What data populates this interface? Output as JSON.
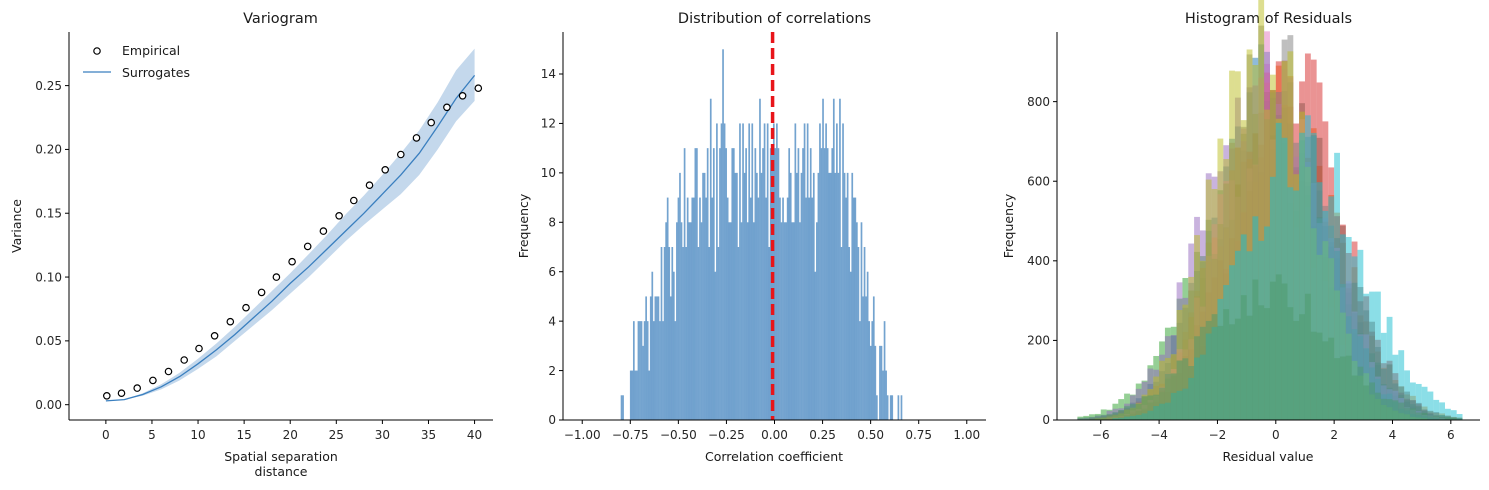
{
  "chart_data": [
    {
      "type": "scatter",
      "title": "Variogram",
      "xlabel": "Spatial separation\ndistance",
      "ylabel": "Variance",
      "xlim": [
        -4,
        42
      ],
      "ylim": [
        -0.012,
        0.292
      ],
      "xticks": [
        0,
        5,
        10,
        15,
        20,
        25,
        30,
        35,
        40
      ],
      "yticks": [
        0.0,
        0.05,
        0.1,
        0.15,
        0.2,
        0.25
      ],
      "ytick_labels": [
        "0.00",
        "0.05",
        "0.10",
        "0.15",
        "0.20",
        "0.25"
      ],
      "legend": {
        "position": "top-left",
        "entries": [
          "Empirical",
          "Surrogates"
        ]
      },
      "series": [
        {
          "name": "Empirical",
          "kind": "scatter",
          "x": [
            0.1,
            1.7,
            3.4,
            5.1,
            6.8,
            8.5,
            10.1,
            11.8,
            13.5,
            15.2,
            16.9,
            18.5,
            20.2,
            21.9,
            23.6,
            25.3,
            26.9,
            28.6,
            30.3,
            32.0,
            33.7,
            35.3,
            37.0,
            38.7,
            40.4
          ],
          "y": [
            0.007,
            0.009,
            0.013,
            0.019,
            0.026,
            0.035,
            0.044,
            0.054,
            0.065,
            0.076,
            0.088,
            0.1,
            0.112,
            0.124,
            0.136,
            0.148,
            0.16,
            0.172,
            0.184,
            0.196,
            0.209,
            0.221,
            0.233,
            0.242,
            0.248
          ],
          "color": "#000000"
        },
        {
          "name": "Surrogates",
          "kind": "line",
          "x": [
            0,
            2,
            4,
            6,
            8,
            10,
            12,
            14,
            16,
            18,
            20,
            22,
            24,
            26,
            28,
            30,
            32,
            34,
            36,
            38,
            40
          ],
          "y": [
            0.003,
            0.004,
            0.008,
            0.014,
            0.022,
            0.032,
            0.043,
            0.055,
            0.068,
            0.081,
            0.095,
            0.108,
            0.122,
            0.136,
            0.15,
            0.165,
            0.18,
            0.197,
            0.218,
            0.24,
            0.258
          ],
          "band_lower": [
            0.003,
            0.004,
            0.007,
            0.012,
            0.019,
            0.028,
            0.038,
            0.05,
            0.062,
            0.074,
            0.087,
            0.1,
            0.114,
            0.128,
            0.141,
            0.153,
            0.165,
            0.18,
            0.2,
            0.222,
            0.238
          ],
          "band_upper": [
            0.003,
            0.004,
            0.009,
            0.016,
            0.025,
            0.036,
            0.048,
            0.061,
            0.075,
            0.089,
            0.103,
            0.118,
            0.133,
            0.149,
            0.164,
            0.18,
            0.197,
            0.215,
            0.237,
            0.262,
            0.279
          ],
          "color": "#3a7fbf",
          "band_color": "#c4d8ec"
        }
      ]
    },
    {
      "type": "bar",
      "title": "Distribution of correlations",
      "xlabel": "Correlation coefficient",
      "ylabel": "Frequency",
      "xlim": [
        -1.1,
        1.1
      ],
      "ylim": [
        0,
        15.7
      ],
      "xticks": [
        -1.0,
        -0.75,
        -0.5,
        -0.25,
        0.0,
        0.25,
        0.5,
        0.75,
        1.0
      ],
      "xtick_labels": [
        "−1.00",
        "−0.75",
        "−0.50",
        "−0.25",
        "0.00",
        "0.25",
        "0.50",
        "0.75",
        "1.00"
      ],
      "yticks": [
        0,
        2,
        4,
        6,
        8,
        10,
        12,
        14
      ],
      "bin_start": -0.8,
      "bin_width": 0.008,
      "counts": [
        1,
        1,
        0,
        0,
        0,
        0,
        2,
        2,
        4,
        2,
        2,
        4,
        4,
        4,
        3,
        4,
        5,
        4,
        2,
        5,
        6,
        4,
        5,
        5,
        5,
        4,
        7,
        4,
        7,
        8,
        9,
        7,
        5,
        7,
        6,
        4,
        8,
        9,
        10,
        8,
        7,
        11,
        7,
        9,
        8,
        8,
        9,
        9,
        11,
        11,
        7,
        9,
        8,
        10,
        10,
        9,
        11,
        7,
        13,
        9,
        11,
        6,
        12,
        7,
        11,
        12,
        15,
        12,
        11,
        9,
        8,
        8,
        11,
        11,
        10,
        10,
        7,
        12,
        8,
        12,
        10,
        11,
        8,
        12,
        9,
        12,
        8,
        11,
        10,
        9,
        13,
        10,
        11,
        12,
        9,
        12,
        7,
        11,
        11,
        12,
        11,
        12,
        11,
        9,
        8,
        9,
        8,
        8,
        9,
        11,
        10,
        8,
        8,
        12,
        10,
        11,
        8,
        10,
        11,
        12,
        9,
        12,
        9,
        11,
        9,
        10,
        6,
        8,
        10,
        12,
        11,
        13,
        11,
        12,
        11,
        10,
        10,
        11,
        13,
        10,
        12,
        10,
        13,
        7,
        12,
        10,
        9,
        10,
        7,
        6,
        10,
        9,
        9,
        8,
        7,
        4,
        8,
        5,
        7,
        5,
        6,
        4,
        3,
        4,
        5,
        3,
        1,
        0,
        3,
        3,
        2,
        4,
        2,
        1,
        0,
        1,
        1,
        0,
        0,
        0,
        1,
        0,
        1
      ],
      "bar_color": "#5b93c7",
      "vline": {
        "x": -0.01,
        "color": "#e8151a",
        "style": "dashed"
      }
    },
    {
      "type": "histogram",
      "title": "Histogram of Residuals",
      "xlabel": "Residual value",
      "ylabel": "Frequency",
      "xlim": [
        -7.5,
        7.0
      ],
      "ylim": [
        0,
        975
      ],
      "xticks": [
        -6,
        -4,
        -2,
        0,
        2,
        4,
        6
      ],
      "xtick_labels": [
        "−6",
        "−4",
        "−2",
        "0",
        "2",
        "4",
        "6"
      ],
      "yticks": [
        0,
        200,
        400,
        600,
        800
      ],
      "bins": [
        -6.8,
        -6.6,
        -6.4,
        -6.2,
        -6.0,
        -5.8,
        -5.6,
        -5.4,
        -5.2,
        -5.0,
        -4.8,
        -4.6,
        -4.4,
        -4.2,
        -4.0,
        -3.8,
        -3.6,
        -3.4,
        -3.2,
        -3.0,
        -2.8,
        -2.6,
        -2.4,
        -2.2,
        -2.0,
        -1.8,
        -1.6,
        -1.4,
        -1.2,
        -1.0,
        -0.8,
        -0.6,
        -0.4,
        -0.2,
        0.0,
        0.2,
        0.4,
        0.6,
        0.8,
        1.0,
        1.2,
        1.4,
        1.6,
        1.8,
        2.0,
        2.2,
        2.4,
        2.6,
        2.8,
        3.0,
        3.2,
        3.4,
        3.6,
        3.8,
        4.0,
        4.2,
        4.4,
        4.6,
        4.8,
        5.0,
        5.2,
        5.4,
        5.6,
        5.8,
        6.0,
        6.2
      ],
      "bin_width": 0.2,
      "series": [
        {
          "color": "#1f77b4",
          "peak": 820,
          "center": -0.2,
          "sd": 1.9
        },
        {
          "color": "#ff7f0e",
          "peak": 760,
          "center": 0.1,
          "sd": 2.0
        },
        {
          "color": "#2ca02c",
          "peak": 700,
          "center": -0.4,
          "sd": 2.1
        },
        {
          "color": "#d62728",
          "peak": 870,
          "center": 0.6,
          "sd": 1.7
        },
        {
          "color": "#9467bd",
          "peak": 800,
          "center": -0.8,
          "sd": 1.8
        },
        {
          "color": "#8c564b",
          "peak": 740,
          "center": 0.3,
          "sd": 1.9
        },
        {
          "color": "#e377c2",
          "peak": 840,
          "center": 0.0,
          "sd": 1.8
        },
        {
          "color": "#7f7f7f",
          "peak": 920,
          "center": -0.1,
          "sd": 1.7
        },
        {
          "color": "#bcbd22",
          "peak": 940,
          "center": -0.5,
          "sd": 1.7
        },
        {
          "color": "#17becf",
          "peak": 690,
          "center": 0.9,
          "sd": 2.0
        },
        {
          "color": "#4c9a6a",
          "peak": 330,
          "center": -0.3,
          "sd": 2.2
        }
      ]
    }
  ]
}
